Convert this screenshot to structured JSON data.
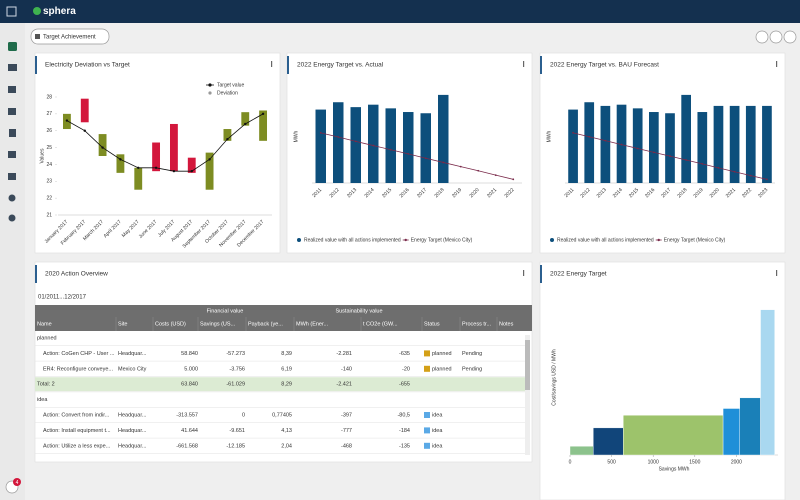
{
  "app": {
    "brand": "sphera",
    "dashboard": "Target Achievement",
    "notifications": "4"
  },
  "chart_data": [
    {
      "type": "floating_bar",
      "title": "Electricity Deviation vs Target",
      "y_label": "Values",
      "categories": [
        "January 2017",
        "February 2017",
        "March 2017",
        "April 2017",
        "May 2017",
        "June 2017",
        "July 2017",
        "August 2017",
        "September 2017",
        "October 2017",
        "November 2017",
        "December 2017"
      ],
      "ylim": [
        21,
        28
      ],
      "yticks": [
        21,
        22,
        23,
        24,
        25,
        26,
        27,
        28
      ],
      "legend": "upper right",
      "series": [
        {
          "name": "Target value",
          "color": "#111111",
          "values": [
            26.6,
            26.0,
            25.0,
            24.3,
            23.8,
            23.8,
            23.6,
            23.6,
            24.3,
            25.5,
            26.4,
            27.0
          ]
        },
        {
          "name": "Deviation",
          "color": "#999999",
          "low": [
            26.1,
            26.5,
            24.5,
            23.5,
            22.5,
            23.6,
            23.6,
            23.5,
            22.5,
            25.4,
            26.3,
            25.4
          ],
          "high": [
            27.0,
            27.9,
            25.8,
            24.6,
            23.8,
            25.3,
            26.4,
            24.4,
            24.7,
            26.1,
            27.1,
            27.2
          ],
          "colors": [
            "#7d8c22",
            "#d3173c",
            "#7d8c22",
            "#7d8c22",
            "#7d8c22",
            "#d3173c",
            "#d3173c",
            "#d3173c",
            "#7d8c22",
            "#7d8c22",
            "#7d8c22",
            "#7d8c22"
          ]
        }
      ]
    },
    {
      "type": "bar",
      "title": "2022 Energy Target vs. Actual",
      "y_label": "MWh",
      "categories": [
        "2011",
        "2012",
        "2013",
        "2014",
        "2015",
        "2016",
        "2017",
        "2018",
        "2019",
        "2020",
        "2021",
        "2022"
      ],
      "ylim": [
        0,
        380
      ],
      "legend": "lower center",
      "series": [
        {
          "name": "Realized value with all actions implemented",
          "kind": "bar",
          "color": "#0d4f7c",
          "values": [
            300,
            330,
            310,
            320,
            305,
            290,
            285,
            360,
            null,
            null,
            null,
            null
          ]
        },
        {
          "name": "Energy Target (Mexico City)",
          "kind": "line",
          "color": "#7a2a4a",
          "values": [
            205,
            188,
            170,
            153,
            136,
            119,
            101,
            84,
            67,
            50,
            32,
            15
          ]
        }
      ]
    },
    {
      "type": "bar",
      "title": "2022 Energy Target vs. BAU Forecast",
      "y_label": "MWh",
      "categories": [
        "2011",
        "2012",
        "2013",
        "2014",
        "2015",
        "2016",
        "2017",
        "2018",
        "2019",
        "2020",
        "2021",
        "2022",
        "2023"
      ],
      "ylim": [
        0,
        380
      ],
      "legend": "lower center",
      "series": [
        {
          "name": "Realized value with all actions implemented",
          "kind": "bar",
          "color": "#0d4f7c",
          "values": [
            300,
            330,
            315,
            320,
            305,
            290,
            285,
            360,
            290,
            315,
            315,
            315,
            315
          ]
        },
        {
          "name": "Energy Target (Mexico City)",
          "kind": "line",
          "color": "#7a2a4a",
          "values": [
            205,
            189,
            173,
            157,
            141,
            125,
            110,
            94,
            78,
            62,
            46,
            30,
            15
          ]
        }
      ]
    },
    {
      "type": "histogram",
      "title": "2022 Energy Target",
      "y_label": "Cost/savings USD / MWh",
      "x_label": "Savings MWh",
      "bins": [
        0,
        280,
        640,
        1840,
        2040,
        2290,
        2460
      ],
      "values": [
        90,
        280,
        410,
        480,
        590,
        1500
      ],
      "colors": [
        "#8cc28c",
        "#11457a",
        "#9dc36b",
        "#1f8fd8",
        "#1a80b8",
        "#a9d8f0"
      ],
      "xlim": [
        0,
        2500
      ],
      "xticks": [
        0,
        500,
        1000,
        1500,
        2000
      ],
      "ylim": [
        0,
        1600
      ]
    }
  ],
  "table": {
    "title": "2020 Action Overview",
    "period": "01/2011...12/2017",
    "group_headers": [
      "Financial value",
      "Sustainability value"
    ],
    "columns": [
      "Name",
      "Site",
      "Costs (USD)",
      "Savings (US...",
      "Payback (ye...",
      "MWh (Ener...",
      "t CO2e (GW...",
      "Status",
      "Process tr...",
      "Notes"
    ],
    "status_colors": {
      "planned": "#d4a017",
      "idea": "#5aa9e6"
    },
    "rows": [
      [
        "planned"
      ],
      [
        "Action: CoGen CHP - User ...",
        "Headquar...",
        "58.840",
        "-57.273",
        "8,39",
        "-2.281",
        "-635",
        "planned",
        "Pending",
        null
      ],
      [
        "ER4: Reconfigure conveye...",
        "Mexico City",
        "5.000",
        "-3.756",
        "6,19",
        "-140",
        "-20",
        "planned",
        "Pending",
        null
      ],
      [
        "Total: 2",
        null,
        "63.840",
        "-61.029",
        "8,29",
        "-2.421",
        "-655",
        null,
        null,
        null
      ],
      [
        "idea"
      ],
      [
        "Action: Convert from indir...",
        "Headquar...",
        "-313.557",
        "0",
        "0,77405",
        "-397",
        "-80,5",
        "idea",
        null,
        null
      ],
      [
        "Action: Install equipment t...",
        "Headquar...",
        "41.644",
        "-9.651",
        "4,13",
        "-777",
        "-184",
        "idea",
        null,
        null
      ],
      [
        "Action: Utilize a less expe...",
        "Headquar...",
        "-661.568",
        "-12.185",
        "2,04",
        "-468",
        "-135",
        "idea",
        null,
        null
      ]
    ]
  }
}
